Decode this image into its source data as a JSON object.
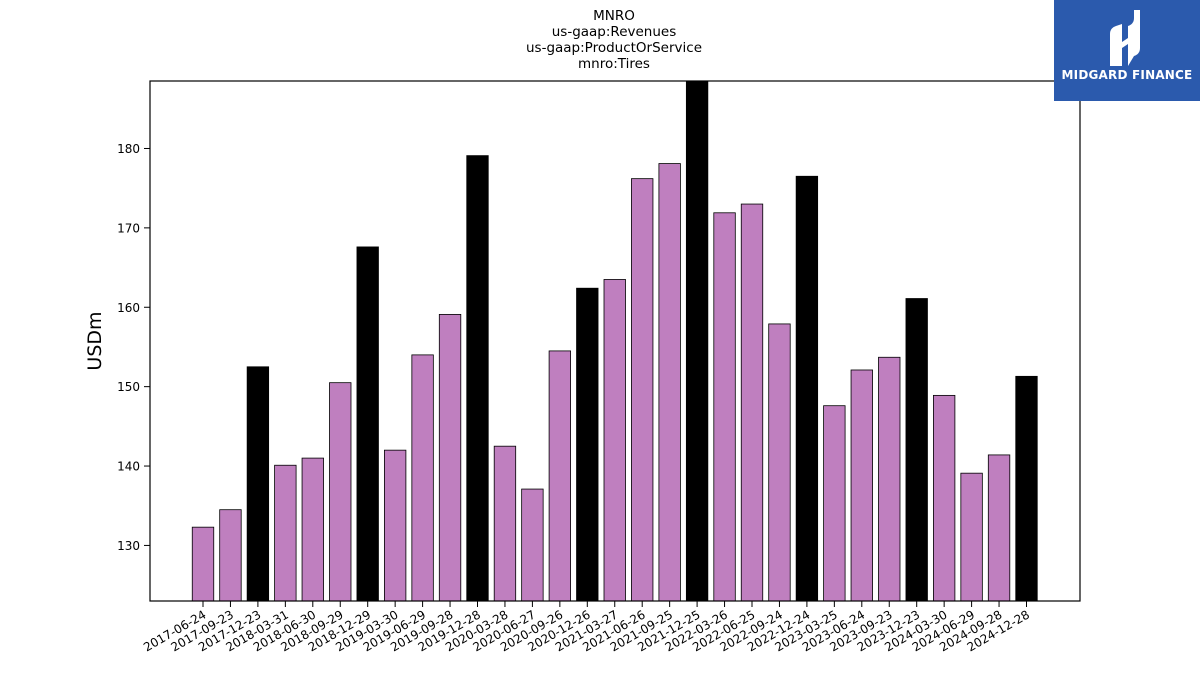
{
  "logo": {
    "name": "MIDGARD FINANCE",
    "bg_color": "#2b5aad"
  },
  "chart_data": {
    "type": "bar",
    "title_lines": [
      "MNRO",
      "us-gaap:Revenues",
      "us-gaap:ProductOrService",
      "mnro:Tires"
    ],
    "xlabel": "",
    "ylabel": "USDm",
    "ylim": [
      123,
      188.5
    ],
    "yticks": [
      130,
      140,
      150,
      160,
      170,
      180
    ],
    "grid": false,
    "legend": "none",
    "colors": {
      "default": "#bf7fbf",
      "highlight": "#000000",
      "edge": "#000000"
    },
    "categories": [
      "2017-06-24",
      "2017-09-23",
      "2017-12-23",
      "2018-03-31",
      "2018-06-30",
      "2018-09-29",
      "2018-12-29",
      "2019-03-30",
      "2019-06-29",
      "2019-09-28",
      "2019-12-28",
      "2020-03-28",
      "2020-06-27",
      "2020-09-26",
      "2020-12-26",
      "2021-03-27",
      "2021-06-26",
      "2021-09-25",
      "2021-12-25",
      "2022-03-26",
      "2022-06-25",
      "2022-09-24",
      "2022-12-24",
      "2023-03-25",
      "2023-06-24",
      "2023-09-23",
      "2023-12-23",
      "2024-03-30",
      "2024-06-29",
      "2024-09-28",
      "2024-12-28"
    ],
    "values": [
      132.3,
      134.5,
      152.5,
      140.1,
      141.0,
      150.5,
      167.6,
      142.0,
      154.0,
      159.1,
      179.1,
      142.5,
      137.1,
      154.5,
      162.4,
      163.5,
      176.2,
      178.1,
      188.5,
      171.9,
      173.0,
      157.9,
      176.5,
      147.6,
      152.1,
      153.7,
      161.1,
      148.9,
      139.1,
      141.4,
      151.3
    ],
    "highlight": [
      false,
      false,
      true,
      false,
      false,
      false,
      true,
      false,
      false,
      false,
      true,
      false,
      false,
      false,
      true,
      false,
      false,
      false,
      true,
      false,
      false,
      false,
      true,
      false,
      false,
      false,
      true,
      false,
      false,
      false,
      true
    ]
  }
}
